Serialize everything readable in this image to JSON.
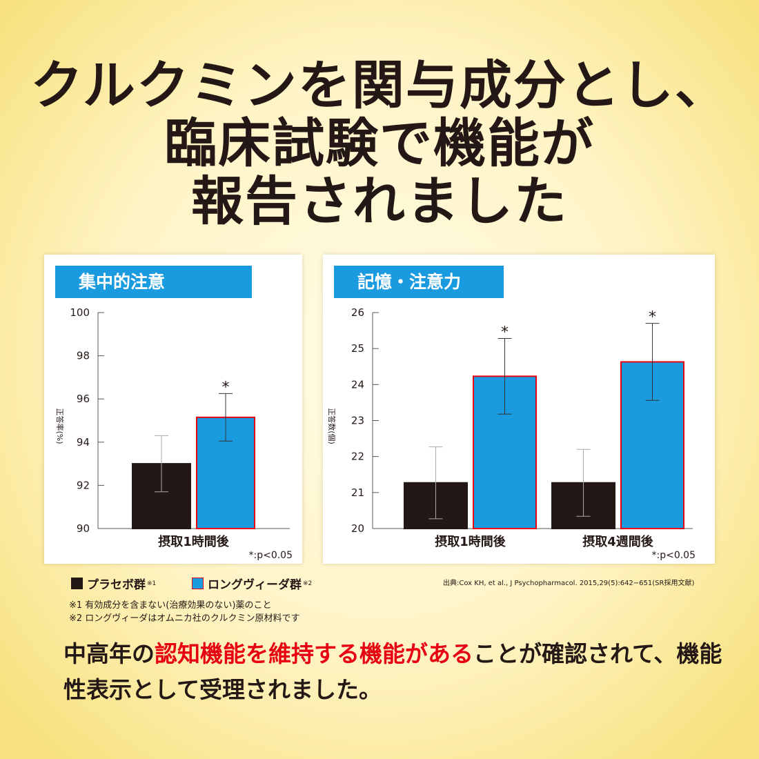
{
  "headline": {
    "line1": "クルクミンを関与成分とし、",
    "line2": "臨床試験で機能が",
    "line3": "報告されました"
  },
  "colors": {
    "placebo": "#231815",
    "longvida": "#1a9be0",
    "longvida_border": "#e60012",
    "panel_tag": "#1a9be0",
    "highlight": "#e60012"
  },
  "panels": [
    {
      "tag": "集中的注意",
      "ylabel": "正答率(%)",
      "significance_note": "*:p<0.05"
    },
    {
      "tag": "記憶・注意力",
      "ylabel": "正答数(個)",
      "significance_note": "*:p<0.05"
    }
  ],
  "chart_data": [
    {
      "type": "bar",
      "title": "集中的注意",
      "ylabel": "正答率(%)",
      "ylim": [
        90,
        100
      ],
      "yticks": [
        90,
        92,
        94,
        96,
        98,
        100
      ],
      "categories": [
        "摂取1時間後"
      ],
      "series": [
        {
          "name": "プラセボ群",
          "values": [
            93.0
          ],
          "error": [
            1.3
          ]
        },
        {
          "name": "ロングヴィーダ群",
          "values": [
            95.15
          ],
          "error": [
            1.1
          ]
        }
      ],
      "annotations": [
        {
          "category": "摂取1時間後",
          "series": "ロングヴィーダ群",
          "text": "*"
        }
      ],
      "note": "*:p<0.05"
    },
    {
      "type": "bar",
      "title": "記憶・注意力",
      "ylabel": "正答数(個)",
      "ylim": [
        20,
        26
      ],
      "yticks": [
        20,
        21,
        22,
        23,
        24,
        25,
        26
      ],
      "categories": [
        "摂取1時間後",
        "摂取4週間後"
      ],
      "series": [
        {
          "name": "プラセボ群",
          "values": [
            21.27,
            21.27
          ],
          "error": [
            1.0,
            0.93
          ]
        },
        {
          "name": "ロングヴィーダ群",
          "values": [
            24.23,
            24.63
          ],
          "error": [
            1.05,
            1.07
          ]
        }
      ],
      "annotations": [
        {
          "category": "摂取1時間後",
          "series": "ロングヴィーダ群",
          "text": "*"
        },
        {
          "category": "摂取4週間後",
          "series": "ロングヴィーダ群",
          "text": "*"
        }
      ],
      "note": "*:p<0.05"
    }
  ],
  "legend": {
    "placebo_label": "プラセボ群",
    "placebo_mark": "※1",
    "longvida_label": "ロングヴィーダ群",
    "longvida_mark": "※2"
  },
  "source": "出典:Cox KH, et al., J Psychopharmacol. 2015,29(5):642−651(SR採用文献)",
  "notes": [
    "※1 有効成分を含まない(治療効果のない)薬のこと",
    "※2 ロングヴィーダはオムニカ社のクルクミン原材料です"
  ],
  "body": {
    "part1": "中高年の",
    "part2_red": "認知機能を維持する機能がある",
    "part3": "ことが確認されて、機能性表示として受理されました。"
  }
}
